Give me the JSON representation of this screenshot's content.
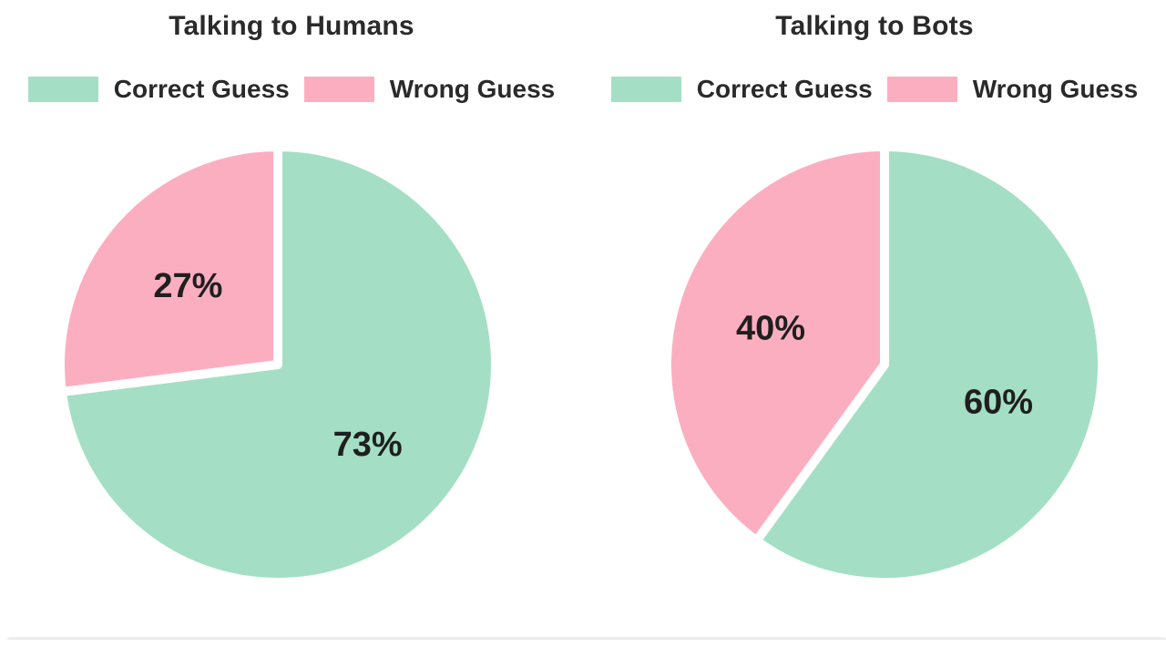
{
  "colors": {
    "correct": "#a4dfc5",
    "wrong": "#fcaec1",
    "title_text": "#2a2a2a",
    "label_text": "#1f1f1f",
    "background": "#ffffff",
    "divider": "#ededed"
  },
  "chart_data": [
    {
      "type": "pie",
      "title": "Talking to Humans",
      "legend_position": "top",
      "direction": "clockwise",
      "start_angle_deg": 0,
      "slices": [
        {
          "name": "Correct Guess",
          "value_pct": 73,
          "label": "73%",
          "color_key": "correct"
        },
        {
          "name": "Wrong Guess",
          "value_pct": 27,
          "label": "27%",
          "color_key": "wrong"
        }
      ]
    },
    {
      "type": "pie",
      "title": "Talking to Bots",
      "legend_position": "top",
      "direction": "clockwise",
      "start_angle_deg": 0,
      "slices": [
        {
          "name": "Correct Guess",
          "value_pct": 60,
          "label": "60%",
          "color_key": "correct"
        },
        {
          "name": "Wrong Guess",
          "value_pct": 40,
          "label": "40%",
          "color_key": "wrong"
        }
      ]
    }
  ]
}
